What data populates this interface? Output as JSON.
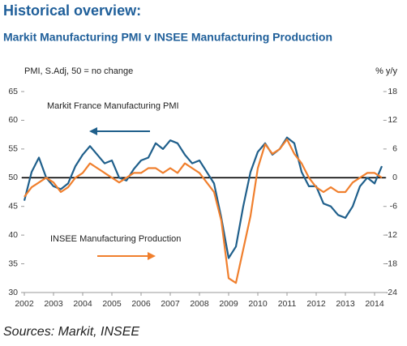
{
  "chart_data": {
    "type": "line",
    "title": "Historical overview:",
    "subtitle": "Markit Manufacturing PMI v INSEE Manufacturing Production",
    "y_label": "PMI, S.Adj, 50 = no change",
    "y2_label": "% y/y",
    "source": "Sources: Markit, INSEE",
    "reference_line": 50,
    "x": [
      2002,
      2002.25,
      2002.5,
      2002.75,
      2003,
      2003.25,
      2003.5,
      2003.75,
      2004,
      2004.25,
      2004.5,
      2004.75,
      2005,
      2005.25,
      2005.5,
      2005.75,
      2006,
      2006.25,
      2006.5,
      2006.75,
      2007,
      2007.25,
      2007.5,
      2007.75,
      2008,
      2008.25,
      2008.5,
      2008.75,
      2009,
      2009.25,
      2009.5,
      2009.75,
      2010,
      2010.25,
      2010.5,
      2010.75,
      2011,
      2011.25,
      2011.5,
      2011.75,
      2012,
      2012.25,
      2012.5,
      2012.75,
      2013,
      2013.25,
      2013.5,
      2013.75,
      2014,
      2014.25
    ],
    "series": [
      {
        "name": "Markit France Manufacturing PMI",
        "color": "#1f5f8b",
        "axis": "y",
        "values": [
          46,
          51,
          53.5,
          50,
          48.5,
          48,
          49,
          52,
          54,
          55.5,
          54,
          52.5,
          53,
          50,
          49.5,
          51.5,
          53,
          53.5,
          56,
          55,
          56.5,
          56,
          54,
          52.5,
          53,
          51,
          49,
          43,
          36,
          38,
          45,
          51,
          54.5,
          56,
          54,
          55,
          57,
          56,
          51,
          48.5,
          48.5,
          45.5,
          45,
          43.5,
          43,
          45,
          48.5,
          50,
          49,
          52
        ]
      },
      {
        "name": "INSEE Manufacturing Production",
        "color": "#f07f2d",
        "axis": "y2",
        "values": [
          -4,
          -2,
          -1,
          0,
          -1,
          -3,
          -2,
          0,
          1,
          3,
          2,
          1,
          0,
          -1,
          0,
          1,
          1,
          2,
          2,
          1,
          2,
          1,
          3,
          2,
          1,
          -1,
          -3,
          -9,
          -21,
          -22,
          -15,
          -8,
          2,
          7,
          5,
          6,
          8,
          5,
          3,
          0,
          -2,
          -3,
          -2,
          -3,
          -3,
          -1,
          0,
          1,
          1,
          0
        ]
      }
    ],
    "xlim": [
      2002,
      2014.3
    ],
    "xticks": [
      2002,
      2003,
      2004,
      2005,
      2006,
      2007,
      2008,
      2009,
      2010,
      2011,
      2012,
      2013,
      2014
    ],
    "ylim": [
      30,
      65
    ],
    "yticks": [
      30,
      35,
      40,
      45,
      50,
      55,
      60,
      65
    ],
    "y2lim": [
      -24,
      18
    ],
    "y2ticks": [
      -24,
      -18,
      -12,
      -6,
      0,
      6,
      12,
      18
    ]
  }
}
